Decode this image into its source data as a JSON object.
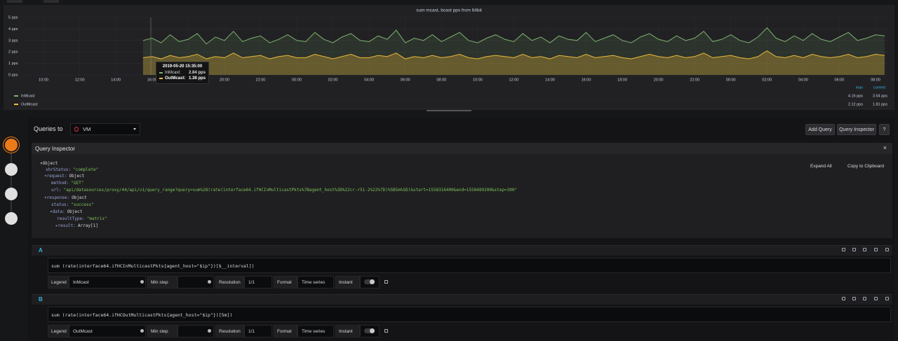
{
  "chart_data": {
    "type": "line",
    "title": "sum mcast, bcast pps from 64bit",
    "x": [
      15.5,
      16,
      16.5,
      17,
      17.5,
      18,
      18.5,
      19,
      19.5,
      20,
      20.5,
      21,
      21.5,
      22,
      22.5,
      23,
      23.5,
      24,
      24.5,
      25,
      25.5,
      26,
      26.5,
      27,
      27.5,
      28,
      28.5,
      29,
      29.5,
      30,
      30.5,
      31,
      31.5,
      32,
      32.5,
      33,
      33.5,
      34,
      34.5,
      35,
      35.5,
      36,
      36.5,
      37,
      37.5,
      38,
      38.5,
      39,
      39.5,
      40,
      40.5,
      41,
      41.5,
      42,
      42.5,
      43,
      43.5,
      44,
      44.5,
      45,
      45.5,
      46,
      46.5,
      47,
      47.5,
      48,
      48.5,
      49,
      49.5,
      50,
      50.5,
      51,
      51.5,
      52,
      52.5,
      53,
      53.5,
      54,
      54.5,
      55,
      55.5,
      56,
      56.5
    ],
    "series": [
      {
        "name": "InMcast",
        "color": "#7eb26d",
        "legend_values": [
          "4.16 pps",
          "3.54 pps"
        ],
        "values": [
          3.0,
          3.2,
          2.8,
          3.5,
          2.9,
          3.1,
          3.6,
          2.7,
          3.3,
          3.0,
          3.8,
          2.9,
          3.2,
          3.4,
          2.8,
          3.1,
          3.5,
          3.0,
          2.9,
          3.7,
          3.1,
          2.8,
          3.3,
          3.6,
          3.0,
          2.9,
          3.4,
          3.1,
          3.9,
          2.8,
          3.2,
          3.0,
          3.5,
          2.9,
          3.3,
          3.7,
          3.0,
          2.8,
          3.2,
          3.5,
          3.1,
          2.9,
          3.6,
          3.0,
          3.3,
          2.8,
          3.4,
          3.1,
          3.0,
          3.7,
          2.9,
          3.2,
          3.5,
          3.0,
          2.8,
          3.3,
          3.6,
          3.1,
          2.9,
          3.4,
          3.0,
          3.2,
          3.8,
          2.9,
          3.1,
          3.5,
          3.0,
          2.8,
          3.3,
          4.1,
          3.2,
          2.9,
          3.4,
          3.0,
          3.6,
          3.1,
          2.9,
          3.3,
          3.7,
          3.0,
          3.2,
          3.5,
          3.4
        ]
      },
      {
        "name": "OutMcast",
        "color": "#eab839",
        "legend_values": [
          "2.12 pps",
          "1.81 pps"
        ],
        "values": [
          1.5,
          1.6,
          1.4,
          1.7,
          1.5,
          1.6,
          1.8,
          1.4,
          1.6,
          1.5,
          1.9,
          1.5,
          1.6,
          1.7,
          1.4,
          1.6,
          1.7,
          1.5,
          1.5,
          1.8,
          1.6,
          1.4,
          1.6,
          1.8,
          1.5,
          1.5,
          1.7,
          1.6,
          1.9,
          1.4,
          1.6,
          1.5,
          1.7,
          1.5,
          1.6,
          1.8,
          1.5,
          1.4,
          1.6,
          1.7,
          1.6,
          1.5,
          1.8,
          1.5,
          1.6,
          1.4,
          1.7,
          1.6,
          1.5,
          1.8,
          1.5,
          1.6,
          1.7,
          1.5,
          1.4,
          1.6,
          1.8,
          1.6,
          1.5,
          1.7,
          1.5,
          1.6,
          1.9,
          1.5,
          1.6,
          1.7,
          1.5,
          1.4,
          1.6,
          2.1,
          1.6,
          1.5,
          1.7,
          1.5,
          1.8,
          1.6,
          1.5,
          1.6,
          1.8,
          1.5,
          1.6,
          1.8,
          1.7
        ]
      }
    ],
    "legend_columns": [
      "max",
      "current"
    ],
    "xlim": [
      8.95,
      56.66
    ],
    "xticks": [
      {
        "value": 10,
        "label": "10:00"
      },
      {
        "value": 12,
        "label": "12:00"
      },
      {
        "value": 14,
        "label": "14:00"
      },
      {
        "value": 16,
        "label": "16:00"
      },
      {
        "value": 18,
        "label": "18:00"
      },
      {
        "value": 20,
        "label": "20:00"
      },
      {
        "value": 22,
        "label": "22:00"
      },
      {
        "value": 24,
        "label": "00:00"
      },
      {
        "value": 26,
        "label": "02:00"
      },
      {
        "value": 28,
        "label": "04:00"
      },
      {
        "value": 30,
        "label": "06:00"
      },
      {
        "value": 32,
        "label": "08:00"
      },
      {
        "value": 34,
        "label": "10:00"
      },
      {
        "value": 36,
        "label": "12:00"
      },
      {
        "value": 38,
        "label": "14:00"
      },
      {
        "value": 40,
        "label": "16:00"
      },
      {
        "value": 42,
        "label": "18:00"
      },
      {
        "value": 44,
        "label": "20:00"
      },
      {
        "value": 46,
        "label": "22:00"
      },
      {
        "value": 48,
        "label": "00:00"
      },
      {
        "value": 50,
        "label": "02:00"
      },
      {
        "value": 52,
        "label": "04:00"
      },
      {
        "value": 54,
        "label": "06:00"
      },
      {
        "value": 56,
        "label": "08:00"
      }
    ],
    "ylim": [
      0,
      5
    ],
    "yticks": [
      {
        "value": 0,
        "label": "0 pps"
      },
      {
        "value": 1,
        "label": "1 pps"
      },
      {
        "value": 2,
        "label": "2 pps"
      },
      {
        "value": 3,
        "label": "3 pps"
      },
      {
        "value": 4,
        "label": "4 pps"
      },
      {
        "value": 5,
        "label": "5 pps"
      }
    ],
    "grid": true,
    "tooltip": {
      "time": "2019-05-20 15:35:00",
      "items": [
        {
          "label": "InMcast:",
          "value": "2.84 pps"
        },
        {
          "label": "OutMcast:",
          "value": "1.38 pps"
        }
      ]
    }
  },
  "query_editor": {
    "queries_to": "Queries to",
    "datasource": "VM",
    "buttons": [
      "Add Query",
      "Query Inspector",
      "?"
    ],
    "inspector": {
      "title": "Query Inspector",
      "close": "×",
      "expand_all": "Expand All",
      "copy": "Copy to Clipboard",
      "rows": [
        {
          "key": "▾Object"
        },
        {
          "key": "xhrStatus:",
          "value": "\"complete\""
        },
        {
          "key": "▾request:",
          "value": "Object"
        },
        {
          "key": "method:",
          "value": "\"GET\""
        },
        {
          "key": "url:",
          "value": "\"api/datasources/proxy/44/api/v1/query_range?query=sum%28(rate(interface64.ifHCInMulticastPkts%7Bagent_host%3D%22cr-r51-2%22%7D)%5B5m%5D)&start=1558316400&end=1558489200&step=300\""
        },
        {
          "key": "▾response:",
          "value": "Object"
        },
        {
          "key": "status:",
          "value": "\"success\""
        },
        {
          "key": "▾data:",
          "value": "Object"
        },
        {
          "key": "resultType:",
          "value": "\"matrix\""
        },
        {
          "key": "▸result:",
          "value": "Array[1]"
        }
      ]
    },
    "form_labels": {
      "legend": "Legend",
      "min_step": "Min step",
      "resolution": "Resolution",
      "format": "Format",
      "instant": "Instant"
    },
    "queries": [
      {
        "letter": "A",
        "expr": "sum (rate(interface64.ifHCInMulticastPkts{agent_host=\"$ip\"})[$__interval])",
        "legend": "InMcast",
        "resolution": "1/1",
        "format": "Time series"
      },
      {
        "letter": "B",
        "expr": "sum (rate(interface64.ifHCOutMulticastPkts{agent_host=\"$ip\"})[5m])",
        "legend": "OutMcast",
        "resolution": "1/1",
        "format": "Time series"
      }
    ]
  }
}
